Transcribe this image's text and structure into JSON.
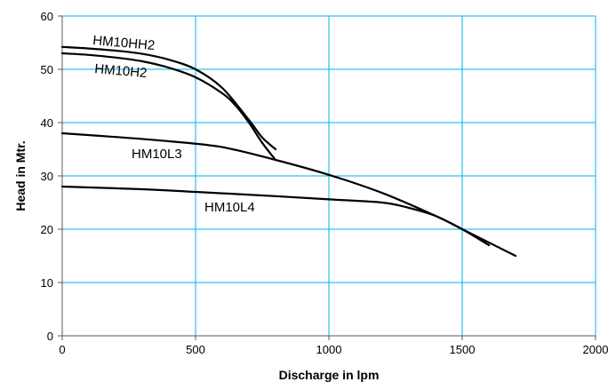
{
  "chart_data": {
    "type": "line",
    "title": "",
    "xlabel": "Discharge in lpm",
    "ylabel": "Head in Mtr.",
    "xlim": [
      0,
      2000
    ],
    "ylim": [
      0,
      60
    ],
    "x_ticks": [
      0,
      500,
      1000,
      1500,
      2000
    ],
    "y_ticks": [
      0,
      10,
      20,
      30,
      40,
      50,
      60
    ],
    "x_tick_labels": [
      "0",
      "500",
      "1000",
      "1500",
      "2000"
    ],
    "y_tick_labels": [
      "0",
      "10",
      "20",
      "30",
      "40",
      "50",
      "60"
    ],
    "grid": true,
    "grid_color": "#00b0f0",
    "line_color": "#000000",
    "legend": "none",
    "series": [
      {
        "name": "HM10HH2",
        "points": [
          [
            0,
            54.2
          ],
          [
            100,
            53.9
          ],
          [
            200,
            53.5
          ],
          [
            300,
            52.9
          ],
          [
            400,
            51.8
          ],
          [
            500,
            50.0
          ],
          [
            600,
            46.5
          ],
          [
            700,
            40.5
          ],
          [
            750,
            37.2
          ],
          [
            800,
            35.0
          ]
        ]
      },
      {
        "name": "HM10H2",
        "points": [
          [
            0,
            53.0
          ],
          [
            100,
            52.7
          ],
          [
            200,
            52.2
          ],
          [
            300,
            51.5
          ],
          [
            400,
            50.3
          ],
          [
            500,
            48.5
          ],
          [
            600,
            45.5
          ],
          [
            650,
            43.2
          ],
          [
            700,
            40.0
          ],
          [
            750,
            36.2
          ],
          [
            800,
            33.0
          ]
        ]
      },
      {
        "name": "HM10L3",
        "points": [
          [
            0,
            38.0
          ],
          [
            200,
            37.3
          ],
          [
            400,
            36.5
          ],
          [
            600,
            35.4
          ],
          [
            800,
            33.0
          ],
          [
            1000,
            30.2
          ],
          [
            1200,
            26.8
          ],
          [
            1400,
            22.5
          ],
          [
            1500,
            20.0
          ],
          [
            1600,
            17.0
          ]
        ]
      },
      {
        "name": "HM10L4",
        "points": [
          [
            0,
            28.0
          ],
          [
            300,
            27.5
          ],
          [
            500,
            27.0
          ],
          [
            800,
            26.2
          ],
          [
            1000,
            25.6
          ],
          [
            1200,
            25.0
          ],
          [
            1300,
            24.0
          ],
          [
            1400,
            22.5
          ],
          [
            1500,
            20.0
          ],
          [
            1600,
            17.5
          ],
          [
            1700,
            15.0
          ]
        ]
      }
    ]
  }
}
